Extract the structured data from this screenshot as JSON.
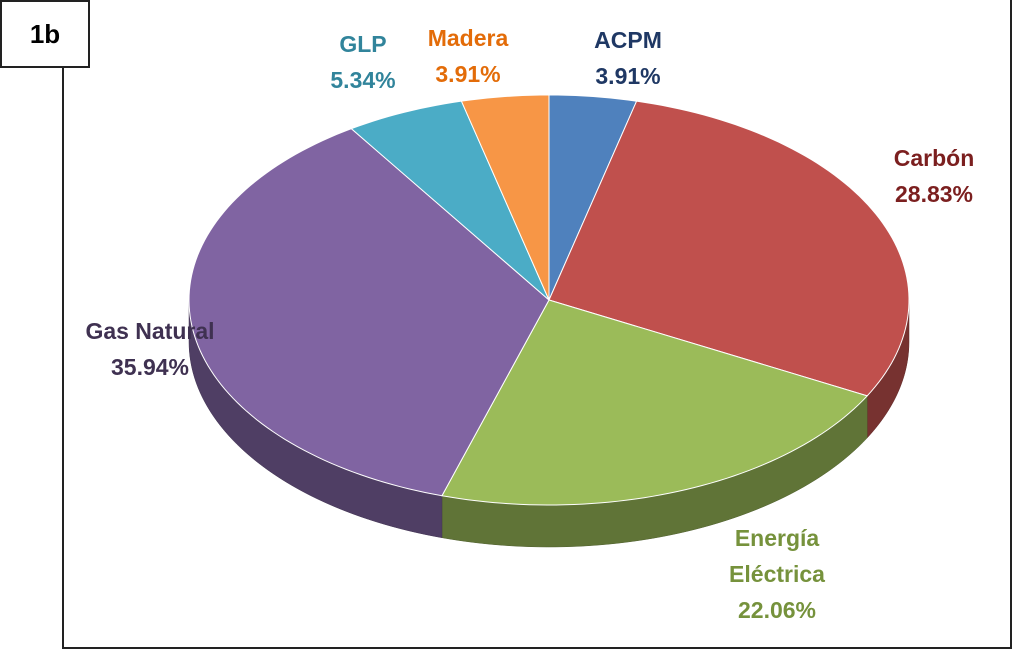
{
  "chart_data": {
    "type": "pie",
    "annotation": "1b",
    "categories": [
      "ACPM",
      "Carbón",
      "Energía Eléctrica",
      "Gas Natural",
      "GLP",
      "Madera"
    ],
    "values": [
      3.91,
      28.83,
      22.06,
      35.94,
      5.34,
      3.91
    ],
    "value_labels": [
      "3.91%",
      "28.83%",
      "22.06%",
      "35.94%",
      "5.34%",
      "3.91%"
    ],
    "colors": [
      "#4f81bd",
      "#c0504d",
      "#9bbb59",
      "#8064a2",
      "#4bacc6",
      "#f79646"
    ],
    "label_colors": [
      "#1f3864",
      "#7b1f1f",
      "#76923c",
      "#3f3151",
      "#31849b",
      "#e36c09"
    ]
  }
}
